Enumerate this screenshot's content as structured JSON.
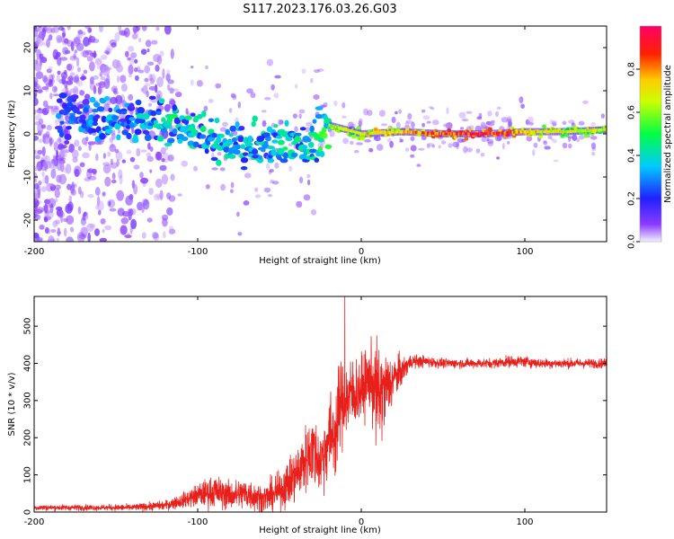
{
  "title": "S117.2023.176.03.26.G03",
  "colors": {
    "snr_line": "#e8201c",
    "axis": "#000000",
    "colormap": [
      "#f2f2ff",
      "#6a00ff",
      "#2222ff",
      "#00ccff",
      "#00ff44",
      "#ffee00",
      "#ff2200",
      "#ff0066"
    ]
  },
  "chart_data": [
    {
      "type": "heatmap",
      "xlabel": "Height of straight line (km)",
      "ylabel": "Frequency (Hz)",
      "xlim": [
        -200,
        150
      ],
      "ylim": [
        -25,
        25
      ],
      "x_ticks": [
        -200,
        -100,
        0,
        100
      ],
      "x_tick_labels": [
        "-200",
        "-100",
        "0",
        "100"
      ],
      "y_ticks": [
        -20,
        -10,
        0,
        10,
        20
      ],
      "y_tick_labels": [
        "-20",
        "-10",
        "0",
        "10",
        "20"
      ],
      "colorbar": {
        "label": "Normalized spectral amplitude",
        "range": [
          0,
          1
        ],
        "ticks": [
          0.0,
          0.2,
          0.4,
          0.6,
          0.8
        ],
        "tick_labels": [
          "0.0",
          "0.2",
          "0.4",
          "0.6",
          "0.8"
        ]
      },
      "ridge_frequency_hz": [
        [
          -180,
          4
        ],
        [
          -160,
          4
        ],
        [
          -140,
          3
        ],
        [
          -120,
          2.5
        ],
        [
          -100,
          0
        ],
        [
          -80,
          -3
        ],
        [
          -60,
          -3
        ],
        [
          -40,
          -2
        ],
        [
          -30,
          -2
        ],
        [
          -20,
          2
        ],
        [
          0,
          0
        ],
        [
          25,
          0.5
        ],
        [
          50,
          0
        ],
        [
          75,
          0
        ],
        [
          100,
          0.5
        ],
        [
          125,
          0.5
        ],
        [
          150,
          1
        ]
      ],
      "ridge_amplitude": [
        [
          -180,
          0.3
        ],
        [
          -160,
          0.35
        ],
        [
          -140,
          0.4
        ],
        [
          -120,
          0.5
        ],
        [
          -100,
          0.45
        ],
        [
          -80,
          0.45
        ],
        [
          -60,
          0.45
        ],
        [
          -40,
          0.45
        ],
        [
          -30,
          0.5
        ],
        [
          -20,
          0.6
        ],
        [
          0,
          0.7
        ],
        [
          25,
          0.75
        ],
        [
          50,
          0.85
        ],
        [
          75,
          0.95
        ],
        [
          100,
          0.75
        ],
        [
          125,
          0.65
        ],
        [
          150,
          0.65
        ]
      ]
    },
    {
      "type": "line",
      "xlabel": "Height of straight line (km)",
      "ylabel": "SNR (10 * v/v)",
      "xlim": [
        -200,
        150
      ],
      "ylim": [
        0,
        580
      ],
      "x_ticks": [
        -200,
        -100,
        0,
        100
      ],
      "x_tick_labels": [
        "-200",
        "-100",
        "0",
        "100"
      ],
      "y_ticks": [
        0,
        100,
        200,
        300,
        400,
        500
      ],
      "y_tick_labels": [
        "0",
        "100",
        "200",
        "300",
        "400",
        "500"
      ],
      "series": [
        {
          "x": [
            -200,
            -180,
            -160,
            -140,
            -120,
            -110,
            -100,
            -90,
            -80,
            -70,
            -60,
            -50,
            -40,
            -30,
            -25,
            -20,
            -15,
            -13,
            -10,
            -5,
            0,
            5,
            10,
            15,
            20,
            25,
            30,
            40,
            50,
            60,
            70,
            80,
            90,
            100,
            110,
            120,
            130,
            140,
            150
          ],
          "values": [
            12,
            12,
            12,
            12,
            18,
            30,
            45,
            55,
            45,
            50,
            35,
            55,
            100,
            170,
            130,
            200,
            220,
            290,
            300,
            320,
            330,
            360,
            310,
            330,
            360,
            380,
            405,
            405,
            400,
            400,
            400,
            400,
            405,
            405,
            400,
            400,
            400,
            400,
            400
          ],
          "noise": [
            6,
            6,
            6,
            7,
            10,
            15,
            25,
            35,
            30,
            35,
            30,
            40,
            60,
            80,
            70,
            90,
            100,
            100,
            90,
            80,
            70,
            70,
            120,
            80,
            50,
            30,
            15,
            12,
            10,
            10,
            10,
            10,
            12,
            12,
            10,
            10,
            10,
            10,
            10
          ]
        }
      ],
      "spike": {
        "x": -10,
        "value": 580
      }
    }
  ]
}
